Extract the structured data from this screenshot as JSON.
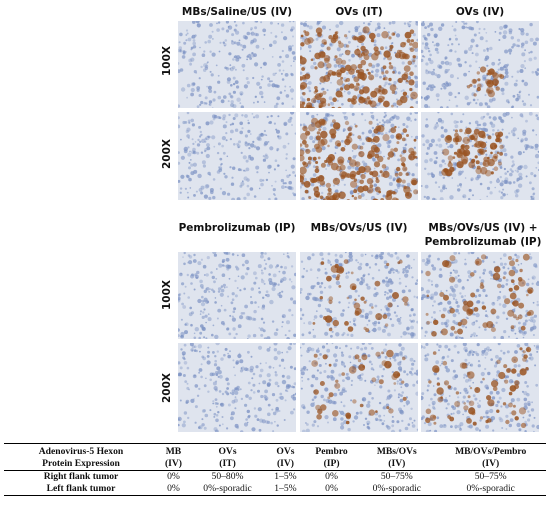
{
  "figure": {
    "top_headers": [
      "MBs/Saline/US (IV)",
      "OVs (IT)",
      "OVs (IV)"
    ],
    "bottom_headers": [
      "Pembrolizumab (IP)",
      "MBs/OVs/US (IV)",
      "MBs/OVs/US (IV) +",
      "Pembrolizumab (IP)"
    ],
    "row_labels": [
      "100X",
      "200X"
    ]
  },
  "table": {
    "header_row1": [
      "Adenovirus-5 Hexon",
      "MB",
      "OVs",
      "OVs",
      "Pembro",
      "MBs/OVs",
      "MB/OVs/Pembro"
    ],
    "header_row2": [
      "Protein Expression",
      "(IV)",
      "(IT)",
      "(IV)",
      "(IP)",
      "(IV)",
      "(IV)"
    ],
    "rows": [
      [
        "Right flank tumor",
        "0%",
        "50–80%",
        "1–5%",
        "0%",
        "50–75%",
        "50–75%"
      ],
      [
        "Left flank tumor",
        "0%",
        "0%-sporadic",
        "1–5%",
        "0%",
        "0%-sporadic",
        "0%-sporadic"
      ]
    ]
  },
  "stain_colors": {
    "background": "#dfe4ee",
    "nuclei": "#7d93c4",
    "brown_stain": "#9a5422"
  }
}
